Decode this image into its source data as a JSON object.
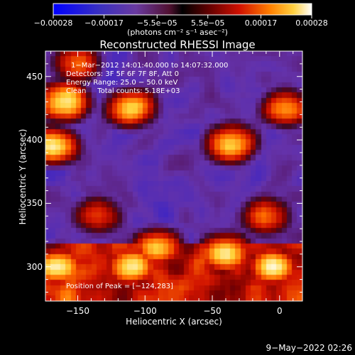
{
  "chart_data": {
    "type": "heatmap",
    "title": "Reconstructed RHESSI Image",
    "xlabel": "Heliocentric X (arcsec)",
    "ylabel": "Heliocentric Y (arcsec)",
    "xlim": [
      -174,
      17
    ],
    "ylim": [
      273,
      470
    ],
    "xticks": [
      -150,
      -100,
      -50,
      0
    ],
    "xtick_labels": [
      "−150",
      "−100",
      "−50",
      "0"
    ],
    "yticks": [
      300,
      350,
      400,
      450
    ],
    "ytick_labels": [
      "300",
      "350",
      "400",
      "450"
    ],
    "colorbar": {
      "ticks": [
        -0.00028,
        -0.00017,
        -5.5e-05,
        5.5e-05,
        0.00017,
        0.00028
      ],
      "tick_labels": [
        "−0.00028",
        "−0.00017",
        "−5.5e−05",
        "5.5e−05",
        "0.00017",
        "0.00028"
      ],
      "units": "(photons cm⁻² s⁻¹ asec⁻²)",
      "range": [
        -0.00028,
        0.00028
      ]
    },
    "annotations": [
      "1−Mar−2012 14:01:40.000 to 14:07:32.000",
      "Detectors: 3F 5F 6F 7F 8F, Att 0",
      "Energy Range: 25.0 − 50.0 keV",
      "Clean     Total counts: 5.18E+03"
    ],
    "peak_label": "Position of Peak = [−124,283]",
    "peak_position": [
      -124,
      283
    ],
    "bright_regions": [
      {
        "x": -160,
        "y": 430,
        "level": 0.95
      },
      {
        "x": -168,
        "y": 395,
        "level": 0.9
      },
      {
        "x": -165,
        "y": 300,
        "level": 0.95
      },
      {
        "x": -110,
        "y": 300,
        "level": 0.95
      },
      {
        "x": -90,
        "y": 315,
        "level": 0.85
      },
      {
        "x": -40,
        "y": 310,
        "level": 0.95
      },
      {
        "x": -5,
        "y": 300,
        "level": 0.95
      },
      {
        "x": -110,
        "y": 425,
        "level": 0.85
      },
      {
        "x": -36,
        "y": 397,
        "level": 0.88
      },
      {
        "x": 5,
        "y": 425,
        "level": 0.75
      },
      {
        "x": -10,
        "y": 340,
        "level": 0.7
      },
      {
        "x": -135,
        "y": 340,
        "level": 0.65
      },
      {
        "x": -150,
        "y": 460,
        "level": 0.7
      }
    ],
    "background_level": 0.22
  },
  "footer": {
    "date_stamp": "9−May−2022 02:26"
  },
  "colors": {
    "frame": "#ffffff",
    "background": "#000000",
    "colormap": [
      "#0000e0",
      "#3a1a8a",
      "#5a2590",
      "#6a1e60",
      "#7a0a10",
      "#c01008",
      "#f04a00",
      "#ff9a10",
      "#ffd840",
      "#ffffff"
    ]
  }
}
